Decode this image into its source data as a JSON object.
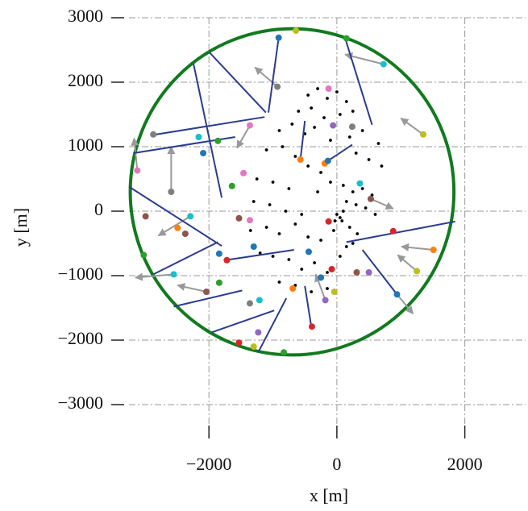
{
  "chart_data": {
    "type": "scatter",
    "xlabel": "x [m]",
    "ylabel": "y [m]",
    "xlim": [
      -3250,
      2950
    ],
    "ylim": [
      -3500,
      3000
    ],
    "xticks": [
      {
        "value": -2000,
        "label": "−2000"
      },
      0,
      2000
    ],
    "yticks": [
      {
        "value": -3000,
        "label": "−3000"
      },
      {
        "value": -2000,
        "label": "−2000"
      },
      {
        "value": -1000,
        "label": "−1000"
      },
      0,
      1000,
      2000,
      3000
    ],
    "grid": true,
    "circle": {
      "center": [
        -700,
        300
      ],
      "radius": 2530,
      "color": "#117a1e"
    },
    "points": {
      "color": "#000000",
      "x": [
        -450,
        -300,
        -150,
        0,
        150,
        -600,
        -400,
        -200,
        50,
        250,
        -900,
        -700,
        -500,
        -350,
        -100,
        200,
        400,
        650,
        -1100,
        -850,
        -650,
        -450,
        -250,
        300,
        500,
        700,
        -1250,
        -1000,
        -750,
        -300,
        -100,
        100,
        250,
        400,
        550,
        -1300,
        -1050,
        -800,
        -550,
        150,
        300,
        450,
        600,
        -1350,
        -1100,
        -900,
        -650,
        -450,
        -250,
        -50,
        80,
        200,
        320,
        -1200,
        -1000,
        -750,
        -550,
        -350,
        -150,
        50,
        150,
        250,
        -900,
        -650,
        -400,
        -150,
        0,
        50,
        100,
        -30
      ],
      "y": [
        1800,
        1900,
        1750,
        1850,
        1700,
        1550,
        1600,
        1450,
        1500,
        1550,
        1250,
        1350,
        1200,
        1300,
        1100,
        1150,
        1250,
        1050,
        950,
        1000,
        850,
        700,
        600,
        900,
        800,
        700,
        500,
        450,
        350,
        300,
        450,
        400,
        300,
        350,
        250,
        150,
        100,
        0,
        -50,
        150,
        100,
        50,
        -50,
        -300,
        -250,
        -350,
        -200,
        -400,
        -450,
        -300,
        -150,
        -250,
        -350,
        -650,
        -700,
        -750,
        -900,
        -800,
        -950,
        -700,
        -550,
        -500,
        -1100,
        -1150,
        -1250,
        -1200,
        -50,
        -100,
        0,
        -150
      ]
    },
    "paths": {
      "color": "#2b3b8f",
      "x": [
        [
          -910,
          -1070
        ],
        [
          -1990,
          -1110
        ],
        [
          130,
          550
        ],
        [
          -2240,
          -1800
        ],
        [
          -2890,
          -1130
        ],
        [
          -3180,
          -1590
        ],
        [
          -570,
          -500
        ],
        [
          -140,
          240
        ],
        [
          1850,
          150
        ],
        [
          -3250,
          -1800
        ],
        [
          -1740,
          -670
        ],
        [
          940,
          400
        ],
        [
          -2550,
          -1480
        ],
        [
          -1960,
          -980
        ],
        [
          -1230,
          -790
        ],
        [
          -400,
          -500
        ],
        [
          -2870,
          -1860
        ]
      ],
      "y": [
        [
          2690,
          1530
        ],
        [
          2460,
          1530
        ],
        [
          2680,
          1340
        ],
        [
          2280,
          210
        ],
        [
          1180,
          1460
        ],
        [
          900,
          1150
        ],
        [
          800,
          1400
        ],
        [
          780,
          1030
        ],
        [
          -160,
          -480
        ],
        [
          380,
          -540
        ],
        [
          -760,
          -600
        ],
        [
          -1290,
          -600
        ],
        [
          -1480,
          -1230
        ],
        [
          -1880,
          -1540
        ],
        [
          -2190,
          -1350
        ],
        [
          -1790,
          -1160
        ],
        [
          -980,
          -480
        ]
      ]
    },
    "arrows": {
      "color": "#999999",
      "x": [
        730,
        1350,
        -2590,
        -3120,
        1510,
        -2550,
        -2040,
        1250,
        -180,
        940,
        -930,
        -2290,
        530,
        -1360
      ],
      "y": [
        2280,
        1190,
        300,
        630,
        -600,
        -980,
        -1250,
        -930,
        -1380,
        -1290,
        1930,
        -80,
        190,
        1330
      ],
      "dx": [
        -600,
        -350,
        0,
        -50,
        -500,
        -600,
        -450,
        -300,
        -150,
        250,
        -350,
        -500,
        350,
        -200
      ],
      "dy": [
        150,
        250,
        700,
        500,
        50,
        -50,
        100,
        250,
        400,
        -300,
        300,
        -300,
        -150,
        -350
      ]
    },
    "sources": {
      "x": [
        -910,
        -640,
        150,
        730,
        -930,
        -130,
        240,
        -60,
        -1360,
        -2870,
        -2160,
        -1860,
        -2090,
        1350,
        -570,
        -190,
        -140,
        -1460,
        -2590,
        -1640,
        -3120,
        360,
        530,
        -2290,
        -2990,
        -1530,
        -1360,
        -130,
        -2490,
        -2370,
        880,
        -1300,
        -1840,
        -1720,
        -440,
        1510,
        -80,
        310,
        500,
        -250,
        -2550,
        -3020,
        1250,
        -690,
        -2040,
        -1840,
        -40,
        -180,
        940,
        -1210,
        -1360,
        -390,
        -1230,
        -1300,
        -1530,
        -830
      ],
      "y": [
        2690,
        2800,
        2680,
        2280,
        1930,
        1900,
        1310,
        1330,
        1330,
        1190,
        1150,
        1090,
        900,
        1190,
        800,
        740,
        780,
        590,
        300,
        390,
        630,
        430,
        190,
        -80,
        -80,
        -110,
        -140,
        -160,
        -260,
        -350,
        -310,
        -550,
        -660,
        -760,
        -630,
        -600,
        -900,
        -950,
        -950,
        -1030,
        -980,
        -680,
        -930,
        -1200,
        -1250,
        -1110,
        -1250,
        -1380,
        -1290,
        -1380,
        -1430,
        -1790,
        -1880,
        -2100,
        -2040,
        -2190
      ],
      "colors": [
        "#1f77b4",
        "#bcbd22",
        "#2ca02c",
        "#17becf",
        "#7f7f7f",
        "#e377c2",
        "#7f7f7f",
        "#9467bd",
        "#e377c2",
        "#7f7f7f",
        "#17becf",
        "#2ca02c",
        "#1f77b4",
        "#bcbd22",
        "#ff7f0e",
        "#ff7f0e",
        "#1f77b4",
        "#e377c2",
        "#7f7f7f",
        "#2ca02c",
        "#e377c2",
        "#17becf",
        "#8c564b",
        "#17becf",
        "#8c564b",
        "#8c564b",
        "#e377c2",
        "#d62728",
        "#ff7f0e",
        "#8c564b",
        "#d62728",
        "#1f77b4",
        "#1f77b4",
        "#d62728",
        "#1f77b4",
        "#ff7f0e",
        "#d62728",
        "#8c564b",
        "#9467bd",
        "#1f77b4",
        "#17becf",
        "#2ca02c",
        "#bcbd22",
        "#ff7f0e",
        "#8c564b",
        "#2ca02c",
        "#bcbd22",
        "#9467bd",
        "#1f77b4",
        "#17becf",
        "#7f7f7f",
        "#d62728",
        "#9467bd",
        "#bcbd22",
        "#d62728",
        "#2ca02c"
      ]
    }
  }
}
